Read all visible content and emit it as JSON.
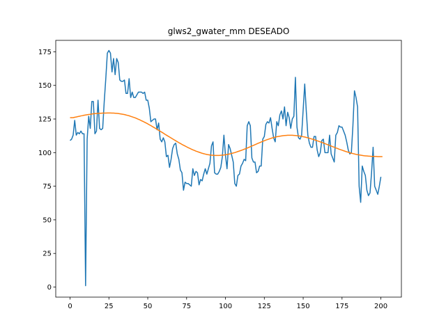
{
  "chart_data": {
    "type": "line",
    "title": "glws2_gwater_mm DESEADO",
    "xlabel": "",
    "ylabel": "",
    "xlim": [
      -9.2,
      213.2
    ],
    "ylim": [
      -7.5,
      183.5
    ],
    "x_ticks": [
      0,
      25,
      50,
      75,
      100,
      125,
      150,
      175,
      200
    ],
    "y_ticks": [
      0,
      25,
      50,
      75,
      100,
      125,
      150,
      175
    ],
    "grid": false,
    "colors": {
      "series_1": "#1f77b4",
      "series_2": "#ff7f0e",
      "axes": "#000000"
    },
    "series": [
      {
        "values": [
          109,
          110,
          113,
          124,
          113,
          115,
          114,
          116,
          114,
          114,
          1,
          110,
          127,
          118,
          138,
          138,
          114,
          116,
          139,
          118,
          117,
          118,
          138,
          155,
          174,
          176,
          174,
          160,
          170,
          158,
          170,
          167,
          154,
          153,
          153,
          154,
          144,
          144,
          155,
          141,
          145,
          141,
          141,
          143,
          145,
          145,
          145,
          144,
          145,
          139,
          139,
          133,
          123,
          124,
          125,
          125,
          117,
          122,
          110,
          108,
          111,
          108,
          97,
          98,
          89,
          95,
          103,
          106,
          107,
          99,
          95,
          87,
          85,
          72,
          78,
          77,
          77,
          76,
          75,
          88,
          83,
          86,
          85,
          76,
          80,
          79,
          84,
          88,
          84,
          88,
          92,
          105,
          108,
          85,
          84,
          84,
          86,
          89,
          97,
          113,
          98,
          88,
          106,
          103,
          98,
          93,
          77,
          75,
          83,
          84,
          90,
          92,
          95,
          94,
          120,
          123,
          120,
          96,
          93,
          93,
          85,
          86,
          90,
          90,
          110,
          112,
          121,
          123,
          122,
          126,
          118,
          111,
          108,
          123,
          120,
          128,
          131,
          125,
          134,
          120,
          130,
          126,
          118,
          125,
          127,
          156,
          119,
          111,
          110,
          113,
          132,
          151,
          131,
          113,
          107,
          104,
          104,
          112,
          112,
          102,
          97,
          100,
          109,
          110,
          100,
          100,
          100,
          113,
          99,
          96,
          93,
          113,
          115,
          120,
          119,
          119,
          116,
          113,
          108,
          102,
          99,
          100,
          120,
          146,
          141,
          134,
          75,
          63,
          90,
          86,
          83,
          72,
          68,
          70,
          85,
          104,
          75,
          72,
          69,
          75,
          82
        ]
      },
      {
        "values": [
          126,
          126,
          126,
          126.3,
          126.5,
          126.8,
          127,
          127.3,
          127.5,
          127.8,
          128,
          128.2,
          128.4,
          128.5,
          128.7,
          128.9,
          129,
          129.1,
          129.2,
          129.3,
          129.3,
          129.4,
          129.4,
          129.4,
          129.5,
          129.5,
          129.5,
          129.4,
          129.4,
          129.3,
          129.2,
          129.1,
          128.9,
          128.7,
          128.5,
          128.3,
          128,
          127.7,
          127.4,
          127,
          126.6,
          126.2,
          125.8,
          125.3,
          124.8,
          124.3,
          123.7,
          123.2,
          122.6,
          122,
          121.4,
          120.7,
          120.1,
          119.4,
          118.7,
          118,
          117.3,
          116.6,
          115.9,
          115.2,
          114.5,
          113.7,
          113,
          112.3,
          111.6,
          110.9,
          110.2,
          109.5,
          108.8,
          108.1,
          107.4,
          106.8,
          106.1,
          105.5,
          104.9,
          104.3,
          103.7,
          103.2,
          102.6,
          102.1,
          101.6,
          101.1,
          100.7,
          100.3,
          99.9,
          99.5,
          99.2,
          98.9,
          98.6,
          98.4,
          98.2,
          98.1,
          98,
          97.9,
          97.9,
          97.9,
          97.9,
          98,
          98.1,
          98.2,
          98.4,
          98.6,
          98.8,
          99.1,
          99.4,
          99.7,
          100,
          100.4,
          100.8,
          101.2,
          101.6,
          102,
          102.5,
          102.9,
          103.4,
          103.9,
          104.4,
          104.9,
          105.4,
          105.9,
          106.4,
          106.9,
          107.4,
          107.9,
          108.4,
          108.8,
          109.3,
          109.7,
          110.1,
          110.5,
          110.9,
          111.2,
          111.5,
          111.8,
          112,
          112.2,
          112.4,
          112.6,
          112.7,
          112.8,
          112.9,
          112.9,
          112.9,
          112.9,
          112.8,
          112.7,
          112.6,
          112.4,
          112.3,
          112.1,
          111.8,
          111.6,
          111.3,
          111,
          110.7,
          110.3,
          110,
          109.6,
          109.2,
          108.8,
          108.4,
          108,
          107.6,
          107.1,
          106.7,
          106.2,
          105.8,
          105.3,
          104.9,
          104.4,
          104,
          103.5,
          103.1,
          102.6,
          102.2,
          101.8,
          101.4,
          101,
          100.6,
          100.3,
          99.9,
          99.6,
          99.3,
          99,
          98.7,
          98.5,
          98.3,
          98.1,
          97.9,
          97.7,
          97.6,
          97.5,
          97.4,
          97.3,
          97.2,
          97.2,
          97.1,
          97.1,
          97,
          97,
          97,
          97
        ]
      }
    ]
  }
}
